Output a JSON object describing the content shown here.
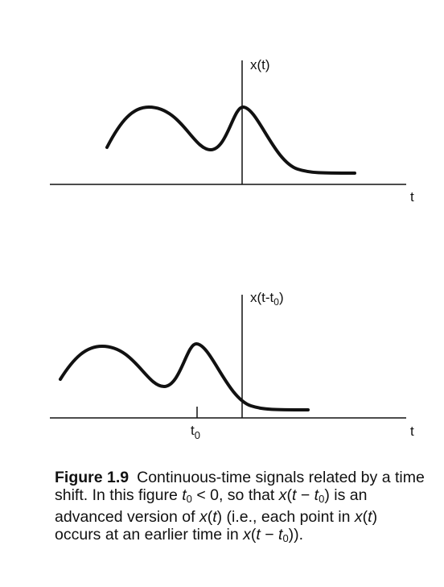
{
  "top_plot": {
    "y_label": "x(t)",
    "x_label": "t"
  },
  "bottom_plot": {
    "y_label": {
      "main": "x(t-t",
      "sub": "0",
      "end": ")"
    },
    "x_label": "t",
    "tick_label": {
      "main": "t",
      "sub": "0"
    }
  },
  "caption": {
    "segments": [
      "Figure 1.9",
      "Continuous-time signals related by a time shift. In this figure ",
      "t",
      "0",
      " < 0, so that ",
      "x",
      "(",
      "t",
      " − ",
      "t",
      "0",
      ") is an advanced version of ",
      "x",
      "(",
      "t",
      ") (i.e., each point in ",
      "x",
      "(",
      "t",
      ") occurs at an earlier time in ",
      "x",
      "(",
      "t",
      " − ",
      "t",
      "0",
      "))."
    ]
  }
}
